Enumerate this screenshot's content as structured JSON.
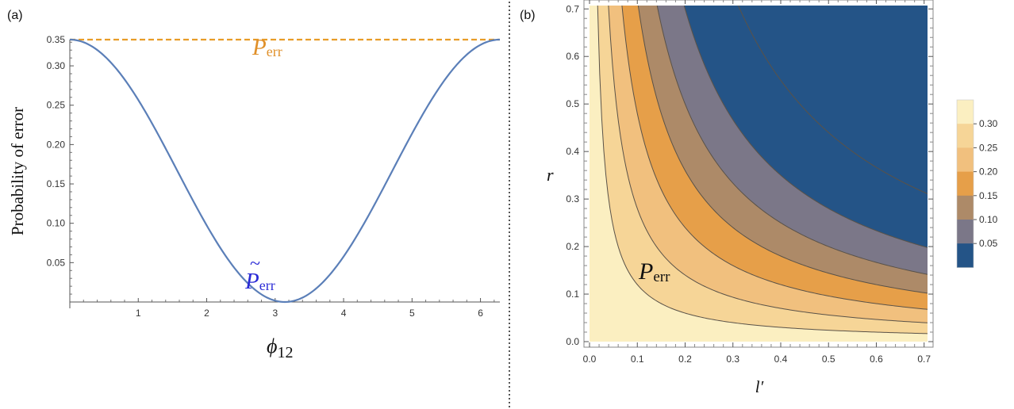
{
  "panels": {
    "a": {
      "label": "(a)"
    },
    "b": {
      "label": "(b)"
    }
  },
  "colors": {
    "curve": "#5b7fb8",
    "dashed": "#e89c27",
    "blue_label": "#2b2bd6",
    "orange_label": "#e0902a",
    "divider": "#555555"
  },
  "chart_data": [
    {
      "type": "line",
      "ylabel": "Probability of error",
      "xlabel_main": "ϕ",
      "xlabel_sub": "12",
      "xlim": [
        0,
        6.2832
      ],
      "ylim": [
        0,
        0.3333
      ],
      "xticks": [
        1,
        2,
        3,
        4,
        5,
        6
      ],
      "xtick_labels": [
        "1",
        "2",
        "3",
        "4",
        "5",
        "6"
      ],
      "yticks": [
        0.05,
        0.1,
        0.15,
        0.2,
        0.25,
        0.3,
        0.35
      ],
      "ytick_labels": [
        "0.05",
        "0.10",
        "0.15",
        "0.20",
        "0.25",
        "0.30",
        "0.35"
      ],
      "series": [
        {
          "formula": "(1/3)*(1+cos(x))/2",
          "x": [
            0,
            0.5,
            1,
            1.5,
            2,
            2.5,
            3,
            3.1416,
            3.5,
            4,
            4.5,
            5,
            5.5,
            6,
            6.2832
          ],
          "y": [
            0.333,
            0.313,
            0.257,
            0.179,
            0.097,
            0.033,
            0.002,
            0.0,
            0.01,
            0.058,
            0.133,
            0.214,
            0.284,
            0.327,
            0.333
          ]
        },
        {
          "style": "dashed",
          "x": [
            0,
            6.2832
          ],
          "y": [
            0.3333,
            0.3333
          ]
        }
      ],
      "annotations": [
        {
          "main": "P",
          "sub": "err",
          "color": "orange"
        },
        {
          "main": "P",
          "tilde": "~",
          "sub": "err",
          "color": "blue"
        }
      ]
    },
    {
      "type": "heatmap",
      "xlabel": "l′",
      "ylabel": "r",
      "xlim": [
        0,
        0.7071
      ],
      "ylim": [
        0,
        0.7071
      ],
      "xticks": [
        0.0,
        0.1,
        0.2,
        0.3,
        0.4,
        0.5,
        0.6,
        0.7
      ],
      "xtick_labels": [
        "0.0",
        "0.1",
        "0.2",
        "0.3",
        "0.4",
        "0.5",
        "0.6",
        "0.7"
      ],
      "yticks": [
        0.0,
        0.1,
        0.2,
        0.3,
        0.4,
        0.5,
        0.6,
        0.7
      ],
      "ytick_labels": [
        "0.0",
        "0.1",
        "0.2",
        "0.3",
        "0.4",
        "0.5",
        "0.6",
        "0.7"
      ],
      "contour_products_lr": [
        0.012,
        0.028,
        0.048,
        0.072,
        0.1,
        0.14,
        0.22
      ],
      "band_colors": [
        "#fbefc1",
        "#f6d597",
        "#f1c07e",
        "#e69f49",
        "#ad8a68",
        "#7b7788",
        "#245487"
      ],
      "legend": {
        "placement": "right",
        "labels": [
          "0.30",
          "0.25",
          "0.20",
          "0.15",
          "0.10",
          "0.05"
        ],
        "colors": [
          "#fbefc1",
          "#f6d597",
          "#f1c07e",
          "#e69f49",
          "#ad8a68",
          "#7b7788",
          "#245487"
        ]
      },
      "annotation": {
        "main": "P",
        "sub": "err"
      }
    }
  ]
}
